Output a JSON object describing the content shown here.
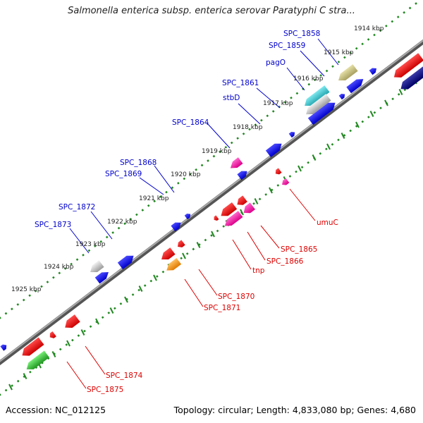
{
  "title": "Salmonella enterica subsp. enterica serovar Paratyphi C stra...",
  "accession": "Accession: NC_012125",
  "summary": "Topology: circular; Length: 4,833,080 bp; Genes: 4,680",
  "colors": {
    "forward_label": "#0000cc",
    "reverse_label": "#dd0000",
    "backbone": "#777777",
    "tick_dots": "#228822"
  },
  "kbp_ticks": [
    "1914 kbp",
    "1915 kbp",
    "1916 kbp",
    "1917 kbp",
    "1918 kbp",
    "1919 kbp",
    "1920 kbp",
    "1921 kbp",
    "1922 kbp",
    "1923 kbp",
    "1924 kbp",
    "1925 kbp"
  ],
  "forward_labels": [
    "SPC_1858",
    "SPC_1859",
    "pagO",
    "SPC_1861",
    "stbD",
    "SPC_1864",
    "SPC_1868",
    "SPC_1869",
    "SPC_1872",
    "SPC_1873"
  ],
  "reverse_labels": [
    "umuC",
    "SPC_1865",
    "SPC_1866",
    "tnp",
    "SPC_1870",
    "SPC_1871",
    "SPC_1874",
    "SPC_1875"
  ],
  "gene_colors": [
    "blue",
    "red",
    "gray",
    "olive",
    "cyan",
    "magenta",
    "pink",
    "orange",
    "green",
    "navy"
  ]
}
